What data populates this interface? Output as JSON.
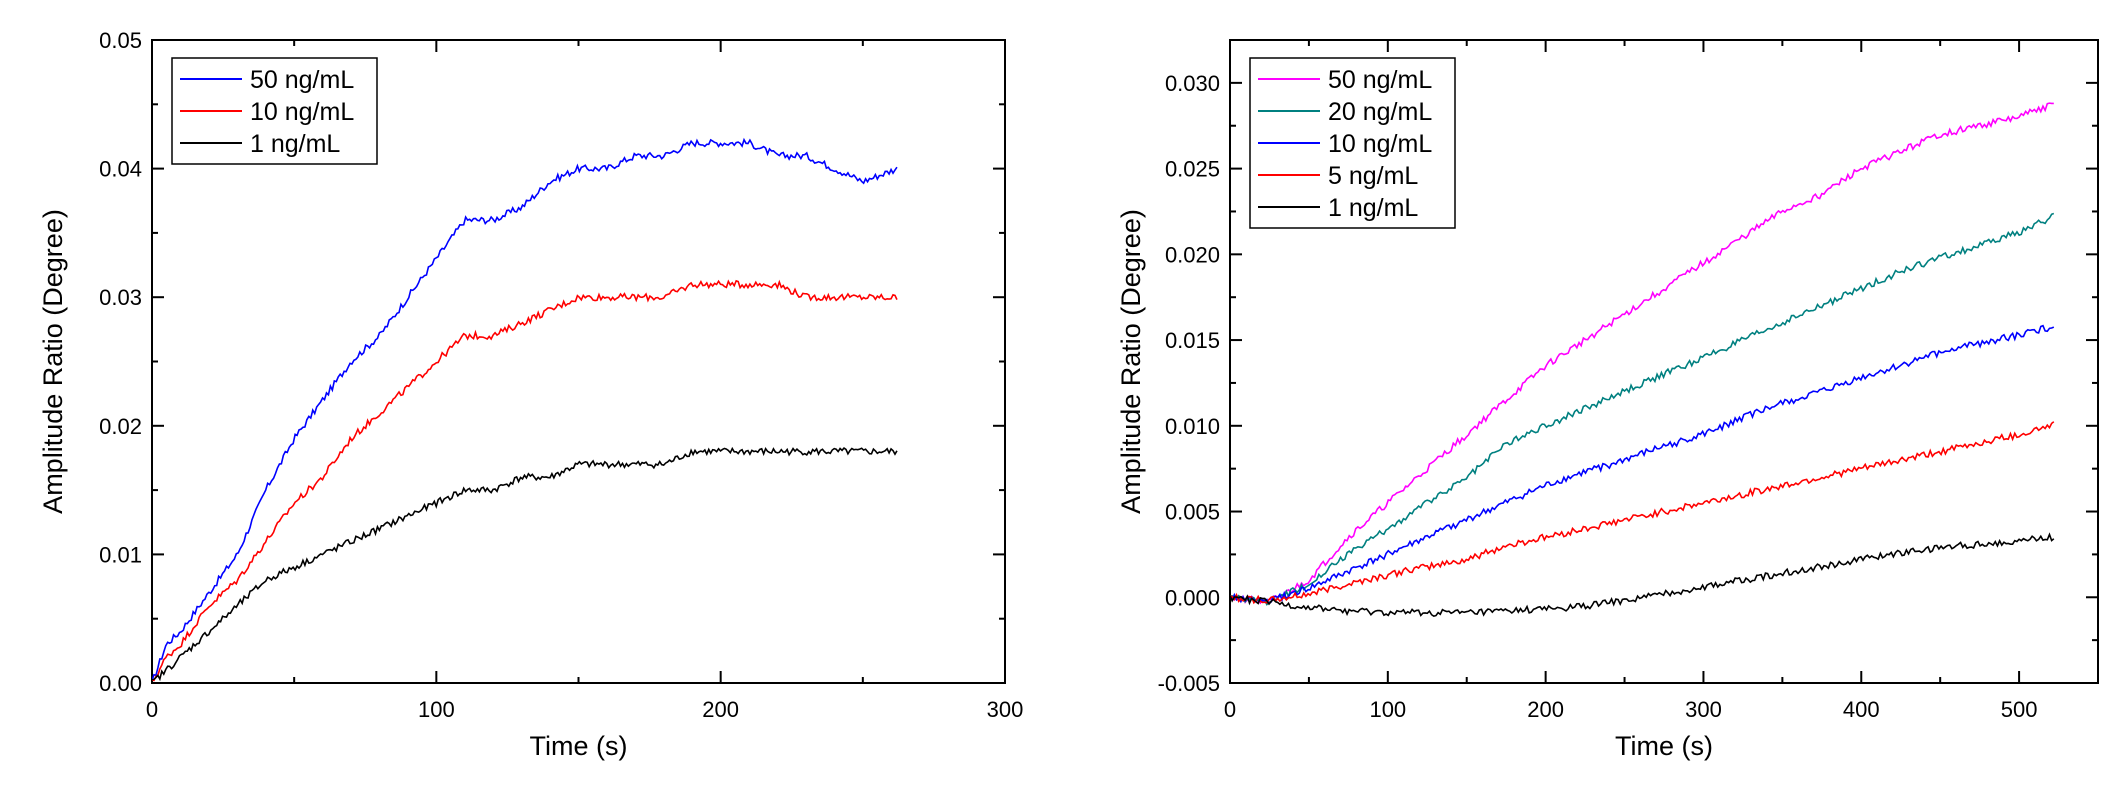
{
  "chart_data": [
    {
      "type": "line",
      "title": "",
      "xlabel": "Time (s)",
      "ylabel": "Amplitude Ratio (Degree)",
      "xlim": [
        0,
        300
      ],
      "ylim": [
        0,
        0.05
      ],
      "xticks": [
        "0",
        "100",
        "200",
        "300"
      ],
      "yticks": [
        "0.00",
        "0.01",
        "0.02",
        "0.03",
        "0.04",
        "0.05"
      ],
      "legend_position": "top-left",
      "grid": false,
      "series": [
        {
          "name": "50 ng/mL",
          "color": "#0000ff",
          "x": [
            0,
            5,
            10,
            20,
            30,
            40,
            50,
            60,
            70,
            80,
            90,
            100,
            110,
            120,
            130,
            140,
            150,
            160,
            170,
            180,
            190,
            200,
            210,
            220,
            230,
            240,
            250,
            262
          ],
          "y": [
            0.0,
            0.003,
            0.004,
            0.007,
            0.01,
            0.015,
            0.019,
            0.022,
            0.025,
            0.027,
            0.03,
            0.033,
            0.036,
            0.036,
            0.037,
            0.039,
            0.04,
            0.04,
            0.041,
            0.041,
            0.042,
            0.042,
            0.042,
            0.041,
            0.041,
            0.04,
            0.039,
            0.04
          ]
        },
        {
          "name": "10 ng/mL",
          "color": "#ff0000",
          "x": [
            0,
            5,
            10,
            20,
            30,
            40,
            50,
            60,
            70,
            80,
            90,
            100,
            110,
            120,
            130,
            140,
            150,
            160,
            170,
            180,
            190,
            200,
            210,
            220,
            230,
            240,
            250,
            262
          ],
          "y": [
            0.0,
            0.002,
            0.003,
            0.006,
            0.008,
            0.011,
            0.014,
            0.016,
            0.019,
            0.021,
            0.023,
            0.025,
            0.027,
            0.027,
            0.028,
            0.029,
            0.03,
            0.03,
            0.03,
            0.03,
            0.031,
            0.031,
            0.031,
            0.031,
            0.03,
            0.03,
            0.03,
            0.03
          ]
        },
        {
          "name": "1 ng/mL",
          "color": "#000000",
          "x": [
            0,
            5,
            10,
            20,
            30,
            40,
            50,
            60,
            70,
            80,
            90,
            100,
            110,
            120,
            130,
            140,
            150,
            160,
            170,
            180,
            190,
            200,
            210,
            220,
            230,
            240,
            250,
            262
          ],
          "y": [
            0.0,
            0.001,
            0.002,
            0.004,
            0.006,
            0.008,
            0.009,
            0.01,
            0.011,
            0.012,
            0.013,
            0.014,
            0.015,
            0.015,
            0.016,
            0.016,
            0.017,
            0.017,
            0.017,
            0.017,
            0.018,
            0.018,
            0.018,
            0.018,
            0.018,
            0.018,
            0.018,
            0.018
          ]
        }
      ]
    },
    {
      "type": "line",
      "title": "",
      "xlabel": "Time (s)",
      "ylabel": "Amplitude Ratio (Degree)",
      "xlim": [
        0,
        550
      ],
      "ylim": [
        -0.005,
        0.0325
      ],
      "xticks": [
        "0",
        "100",
        "200",
        "300",
        "400",
        "500"
      ],
      "yticks": [
        "-0.005",
        "0.000",
        "0.005",
        "0.010",
        "0.015",
        "0.020",
        "0.025",
        "0.030"
      ],
      "legend_position": "top-left",
      "grid": false,
      "series": [
        {
          "name": "50 ng/mL",
          "color": "#ff00ff",
          "x": [
            0,
            25,
            50,
            75,
            100,
            125,
            150,
            175,
            200,
            225,
            250,
            275,
            300,
            325,
            350,
            375,
            400,
            425,
            450,
            475,
            500,
            522
          ],
          "y": [
            0.0,
            -0.0003,
            0.001,
            0.0035,
            0.0055,
            0.0075,
            0.0095,
            0.0115,
            0.0135,
            0.015,
            0.0165,
            0.018,
            0.0195,
            0.021,
            0.0225,
            0.0235,
            0.025,
            0.026,
            0.027,
            0.0275,
            0.028,
            0.0288
          ]
        },
        {
          "name": "20 ng/mL",
          "color": "#008080",
          "x": [
            0,
            25,
            50,
            75,
            100,
            125,
            150,
            175,
            200,
            225,
            250,
            275,
            300,
            325,
            350,
            375,
            400,
            425,
            450,
            475,
            500,
            522
          ],
          "y": [
            0.0,
            -0.0003,
            0.0008,
            0.0025,
            0.004,
            0.0055,
            0.007,
            0.009,
            0.01,
            0.011,
            0.012,
            0.013,
            0.014,
            0.015,
            0.016,
            0.017,
            0.018,
            0.019,
            0.0198,
            0.0205,
            0.0213,
            0.0222
          ]
        },
        {
          "name": "10 ng/mL",
          "color": "#0000ff",
          "x": [
            0,
            25,
            50,
            75,
            100,
            125,
            150,
            175,
            200,
            225,
            250,
            275,
            300,
            325,
            350,
            375,
            400,
            425,
            450,
            475,
            500,
            522
          ],
          "y": [
            0.0,
            -0.0002,
            0.0005,
            0.0015,
            0.0025,
            0.0035,
            0.0045,
            0.0055,
            0.0065,
            0.0073,
            0.008,
            0.0088,
            0.0095,
            0.0105,
            0.0113,
            0.012,
            0.0128,
            0.0135,
            0.0143,
            0.0148,
            0.0153,
            0.0158
          ]
        },
        {
          "name": "5 ng/mL",
          "color": "#ff0000",
          "x": [
            0,
            25,
            50,
            75,
            100,
            125,
            150,
            175,
            200,
            225,
            250,
            275,
            300,
            325,
            350,
            375,
            400,
            425,
            450,
            475,
            500,
            522
          ],
          "y": [
            0.0,
            -0.0002,
            0.0002,
            0.0008,
            0.0013,
            0.0018,
            0.0022,
            0.003,
            0.0035,
            0.004,
            0.0045,
            0.005,
            0.0055,
            0.006,
            0.0065,
            0.007,
            0.0075,
            0.008,
            0.0085,
            0.009,
            0.0095,
            0.0101
          ]
        },
        {
          "name": "1 ng/mL",
          "color": "#000000",
          "x": [
            0,
            25,
            50,
            75,
            100,
            125,
            150,
            175,
            200,
            225,
            250,
            275,
            300,
            325,
            350,
            375,
            400,
            425,
            450,
            475,
            500,
            522
          ],
          "y": [
            0.0,
            -0.0003,
            -0.0006,
            -0.0008,
            -0.0009,
            -0.0009,
            -0.0009,
            -0.0008,
            -0.0007,
            -0.0005,
            -0.0002,
            0.0002,
            0.0006,
            0.001,
            0.0014,
            0.0018,
            0.0022,
            0.0026,
            0.0029,
            0.0031,
            0.0033,
            0.0035
          ]
        }
      ]
    }
  ]
}
